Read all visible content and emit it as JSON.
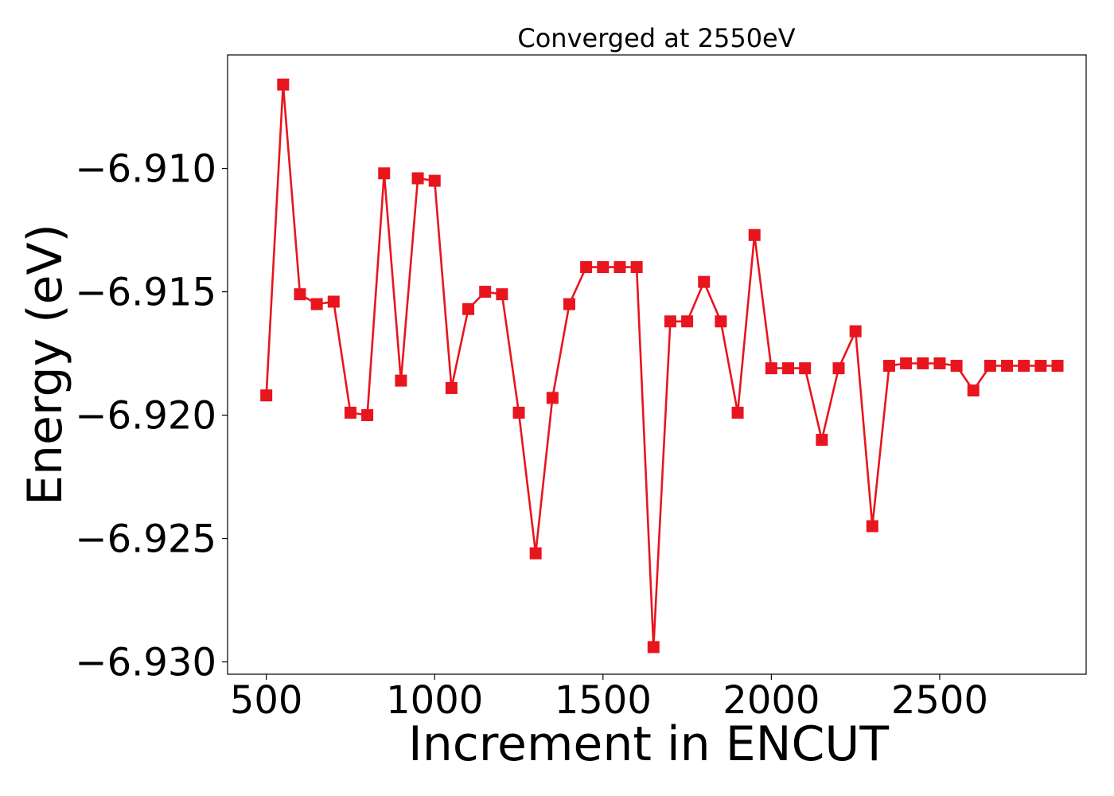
{
  "chart_data": {
    "type": "line",
    "title": "Converged at 2550eV",
    "xlabel": "Increment in ENCUT",
    "ylabel": "Energy (eV)",
    "xlim": [
      385,
      2935
    ],
    "ylim": [
      -6.9305,
      -6.9054
    ],
    "xticks": [
      500,
      1000,
      1500,
      2000,
      2500
    ],
    "xtick_labels": [
      "500",
      "1000",
      "1500",
      "2000",
      "2500"
    ],
    "yticks": [
      -6.91,
      -6.915,
      -6.92,
      -6.925,
      -6.93
    ],
    "ytick_labels": [
      "−6.910",
      "−6.915",
      "−6.920",
      "−6.925",
      "−6.930"
    ],
    "grid": false,
    "legend": "none",
    "series_color": "#e8151e",
    "marker": "square",
    "x": [
      500,
      550,
      600,
      650,
      700,
      750,
      800,
      850,
      900,
      950,
      1000,
      1050,
      1100,
      1150,
      1200,
      1250,
      1300,
      1350,
      1400,
      1450,
      1500,
      1550,
      1600,
      1650,
      1700,
      1750,
      1800,
      1850,
      1900,
      1950,
      2000,
      2050,
      2100,
      2150,
      2200,
      2250,
      2300,
      2350,
      2400,
      2450,
      2500,
      2550,
      2600,
      2650,
      2700,
      2750,
      2800,
      2850
    ],
    "y": [
      -6.9192,
      -6.9066,
      -6.9151,
      -6.9155,
      -6.9154,
      -6.9199,
      -6.92,
      -6.9102,
      -6.9186,
      -6.9104,
      -6.9105,
      -6.9189,
      -6.9157,
      -6.915,
      -6.9151,
      -6.9199,
      -6.9256,
      -6.9193,
      -6.9155,
      -6.914,
      -6.914,
      -6.914,
      -6.914,
      -6.9294,
      -6.9162,
      -6.9162,
      -6.9146,
      -6.9162,
      -6.9199,
      -6.9127,
      -6.9181,
      -6.9181,
      -6.9181,
      -6.921,
      -6.9181,
      -6.9166,
      -6.9245,
      -6.918,
      -6.9179,
      -6.9179,
      -6.9179,
      -6.918,
      -6.919,
      -6.918,
      -6.918,
      -6.918,
      -6.918,
      -6.918
    ]
  }
}
